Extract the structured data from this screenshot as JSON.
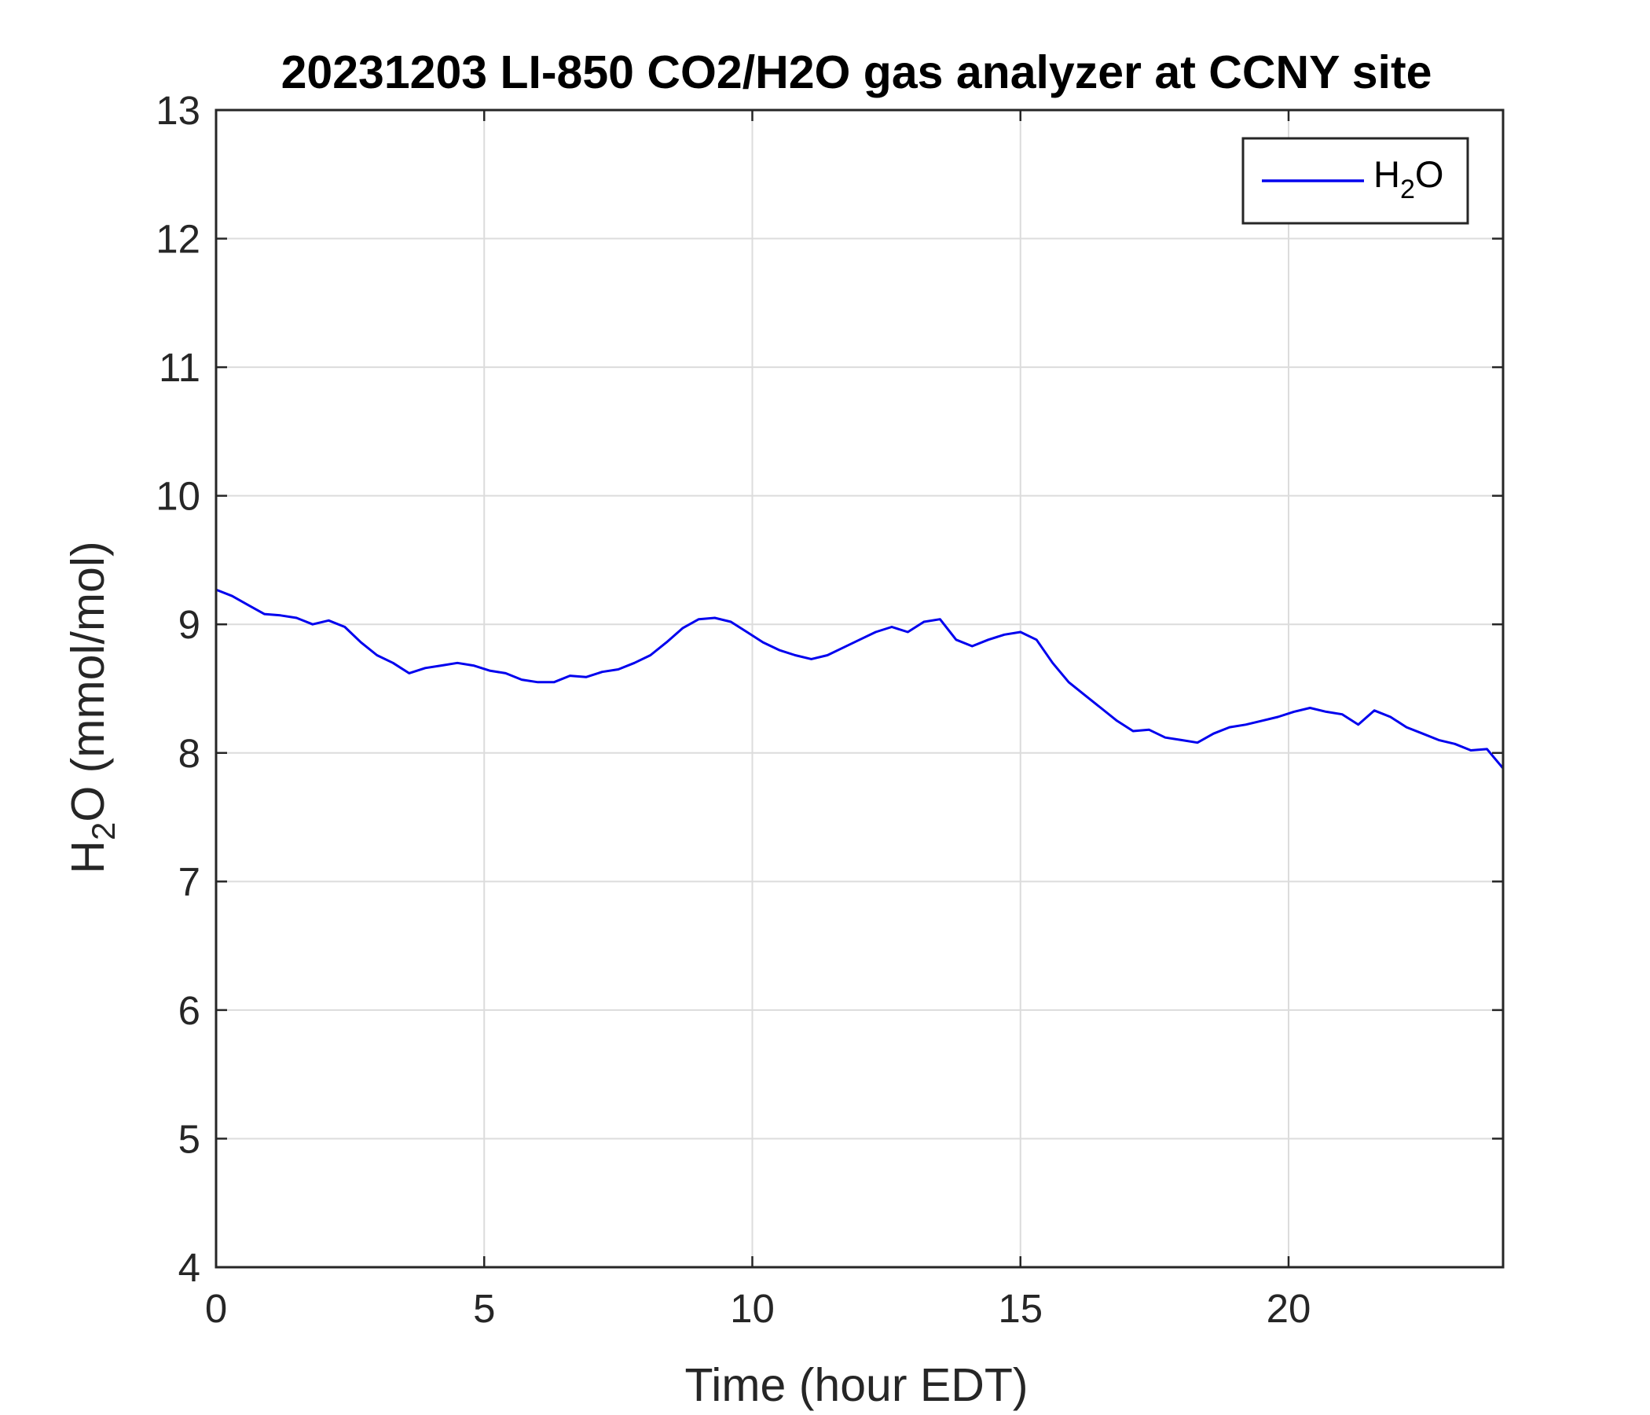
{
  "chart_data": {
    "type": "line",
    "title": "20231203 LI-850 CO2/H2O gas analyzer at CCNY site",
    "xlabel": "Time (hour EDT)",
    "ylabel": {
      "base": "H",
      "sub": "2",
      "rest": "O (mmol/mol)"
    },
    "xlim": [
      0,
      24
    ],
    "ylim": [
      4,
      13
    ],
    "xticks": [
      0,
      5,
      10,
      15,
      20
    ],
    "yticks": [
      4,
      5,
      6,
      7,
      8,
      9,
      10,
      11,
      12,
      13
    ],
    "grid": true,
    "legend_position": "top-right",
    "series": [
      {
        "name": {
          "base": "H",
          "sub": "2",
          "rest": "O"
        },
        "color": "#0000ee",
        "x": [
          0,
          0.3,
          0.6,
          0.9,
          1.2,
          1.5,
          1.8,
          2.1,
          2.4,
          2.7,
          3.0,
          3.3,
          3.6,
          3.9,
          4.2,
          4.5,
          4.8,
          5.1,
          5.4,
          5.7,
          6.0,
          6.3,
          6.6,
          6.9,
          7.2,
          7.5,
          7.8,
          8.1,
          8.4,
          8.7,
          9.0,
          9.3,
          9.6,
          9.9,
          10.2,
          10.5,
          10.8,
          11.1,
          11.4,
          11.7,
          12.0,
          12.3,
          12.6,
          12.9,
          13.2,
          13.5,
          13.8,
          14.1,
          14.4,
          14.7,
          15.0,
          15.3,
          15.6,
          15.9,
          16.2,
          16.5,
          16.8,
          17.1,
          17.4,
          17.7,
          18.0,
          18.3,
          18.6,
          18.9,
          19.2,
          19.5,
          19.8,
          20.1,
          20.4,
          20.7,
          21.0,
          21.3,
          21.6,
          21.9,
          22.2,
          22.5,
          22.8,
          23.1,
          23.4,
          23.7,
          24.0
        ],
        "y": [
          9.27,
          9.22,
          9.15,
          9.08,
          9.07,
          9.05,
          9.0,
          9.03,
          8.98,
          8.86,
          8.76,
          8.7,
          8.62,
          8.66,
          8.68,
          8.7,
          8.68,
          8.64,
          8.62,
          8.57,
          8.55,
          8.55,
          8.6,
          8.59,
          8.63,
          8.65,
          8.7,
          8.76,
          8.86,
          8.97,
          9.04,
          9.05,
          9.02,
          8.94,
          8.86,
          8.8,
          8.76,
          8.73,
          8.76,
          8.82,
          8.88,
          8.94,
          8.98,
          8.94,
          9.02,
          9.04,
          8.88,
          8.83,
          8.88,
          8.92,
          8.94,
          8.88,
          8.7,
          8.55,
          8.45,
          8.35,
          8.25,
          8.17,
          8.18,
          8.12,
          8.1,
          8.08,
          8.15,
          8.2,
          8.22,
          8.25,
          8.28,
          8.32,
          8.35,
          8.32,
          8.3,
          8.22,
          8.33,
          8.28,
          8.2,
          8.15,
          8.1,
          8.07,
          8.02,
          8.03,
          7.88
        ]
      }
    ]
  }
}
